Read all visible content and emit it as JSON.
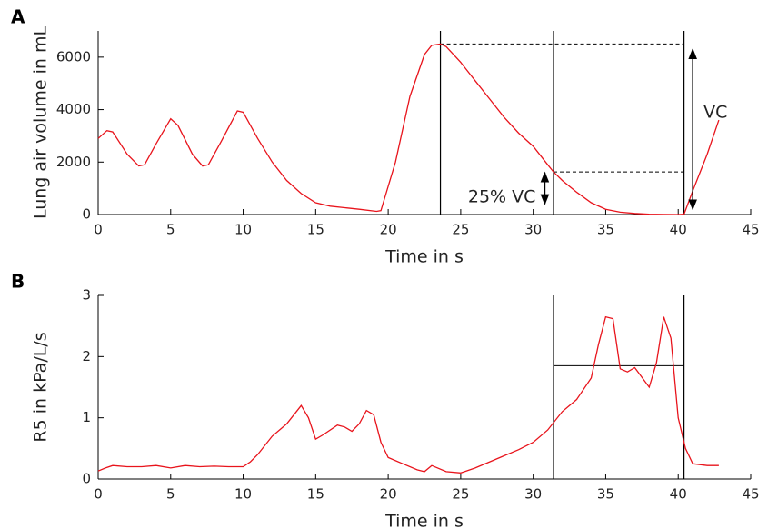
{
  "chart_data": [
    {
      "type": "line",
      "panel_label": "A",
      "xlabel": "Time in s",
      "ylabel": "Lung air volume in mL",
      "xlim": [
        0,
        45
      ],
      "xticks": [
        0,
        5,
        10,
        15,
        20,
        25,
        30,
        35,
        40,
        45
      ],
      "ylim": [
        0,
        7000
      ],
      "yticks": [
        0,
        2000,
        4000,
        6000
      ],
      "color": "#e8141c",
      "x": [
        0,
        0.6,
        1,
        2,
        2.8,
        3.2,
        4,
        5,
        5.5,
        6.5,
        7.2,
        7.6,
        8.5,
        9.6,
        10,
        11,
        12,
        13,
        14,
        15,
        16,
        17,
        18,
        19.2,
        19.5,
        20.5,
        21.5,
        22.5,
        23,
        23.6,
        24,
        25,
        26,
        27,
        28,
        29,
        30,
        31,
        31.4,
        32,
        33,
        34,
        35,
        36,
        37,
        38,
        39,
        40,
        40.4,
        41,
        42,
        42.8
      ],
      "values": [
        2900,
        3200,
        3150,
        2300,
        1850,
        1900,
        2700,
        3650,
        3400,
        2300,
        1850,
        1900,
        2800,
        3950,
        3900,
        2900,
        2000,
        1300,
        800,
        450,
        320,
        260,
        200,
        120,
        150,
        2000,
        4500,
        6100,
        6450,
        6500,
        6400,
        5800,
        5100,
        4400,
        3700,
        3100,
        2600,
        1900,
        1625,
        1300,
        850,
        450,
        200,
        90,
        40,
        15,
        5,
        0,
        10,
        900,
        2300,
        3600
      ],
      "vlines": [
        23.6,
        31.4,
        40.4
      ],
      "hsegments": [
        {
          "y": 6500,
          "x": [
            23.6,
            40.4
          ],
          "dashed": true
        },
        {
          "y": 1625,
          "x": [
            31.4,
            40.4
          ],
          "dashed": true
        }
      ],
      "arrows": [
        {
          "x": 41,
          "y": [
            6300,
            200
          ],
          "label": "VC"
        },
        {
          "x": 30.8,
          "y": [
            1600,
            400
          ],
          "label": "25% VC"
        }
      ]
    },
    {
      "type": "line",
      "panel_label": "B",
      "xlabel": "Time in s",
      "ylabel": "R5 in kPa/L/s",
      "xlim": [
        0,
        45
      ],
      "xticks": [
        0,
        5,
        10,
        15,
        20,
        25,
        30,
        35,
        40,
        45
      ],
      "ylim": [
        0,
        3
      ],
      "yticks": [
        0,
        1,
        2,
        3
      ],
      "color": "#e8141c",
      "x": [
        0,
        0.5,
        1,
        2,
        3,
        4,
        5,
        6,
        7,
        8,
        9,
        10,
        10.5,
        11,
        12,
        13,
        13.5,
        14,
        14.5,
        15,
        15.5,
        16.5,
        17,
        17.5,
        18,
        18.5,
        19,
        19.5,
        20,
        21,
        22,
        22.5,
        23,
        24,
        25,
        26,
        27,
        28,
        29,
        30,
        31,
        32,
        33,
        34,
        34.5,
        35,
        35.5,
        36,
        36.5,
        37,
        38,
        38.5,
        39,
        39.5,
        40,
        40.5,
        41,
        42,
        42.8
      ],
      "values": [
        0.13,
        0.18,
        0.22,
        0.2,
        0.2,
        0.22,
        0.18,
        0.22,
        0.2,
        0.21,
        0.2,
        0.2,
        0.28,
        0.4,
        0.7,
        0.9,
        1.05,
        1.2,
        1.0,
        0.65,
        0.72,
        0.88,
        0.85,
        0.78,
        0.9,
        1.12,
        1.05,
        0.6,
        0.35,
        0.25,
        0.15,
        0.12,
        0.22,
        0.12,
        0.1,
        0.18,
        0.28,
        0.38,
        0.48,
        0.6,
        0.8,
        1.1,
        1.3,
        1.65,
        2.2,
        2.65,
        2.62,
        1.8,
        1.75,
        1.82,
        1.5,
        1.9,
        2.65,
        2.3,
        1.0,
        0.5,
        0.25,
        0.22,
        0.22
      ],
      "vlines": [
        31.4,
        40.4
      ],
      "hsegments": [
        {
          "y": 1.85,
          "x": [
            31.4,
            40.4
          ],
          "dashed": false
        }
      ],
      "arrows": []
    }
  ]
}
